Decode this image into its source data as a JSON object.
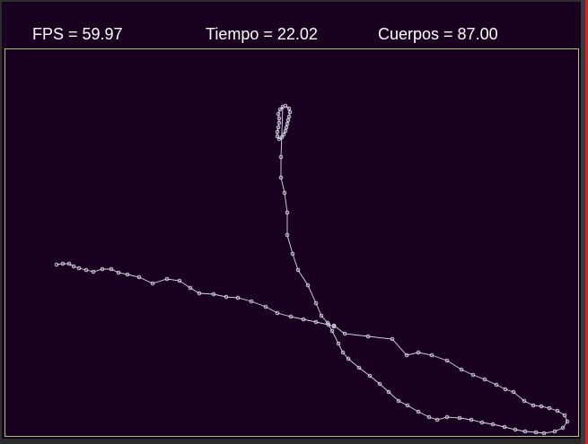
{
  "hud": {
    "fps_text": "FPS = 59.97",
    "time_text": "Tiempo = 22.02",
    "bodies_text": "Cuerpos = 87.00"
  },
  "colors": {
    "background": "#1a0020",
    "text": "#ffffff",
    "border": "#a8c870",
    "trail": "#d8d8e8",
    "frame_accent": "#e0201c"
  }
}
